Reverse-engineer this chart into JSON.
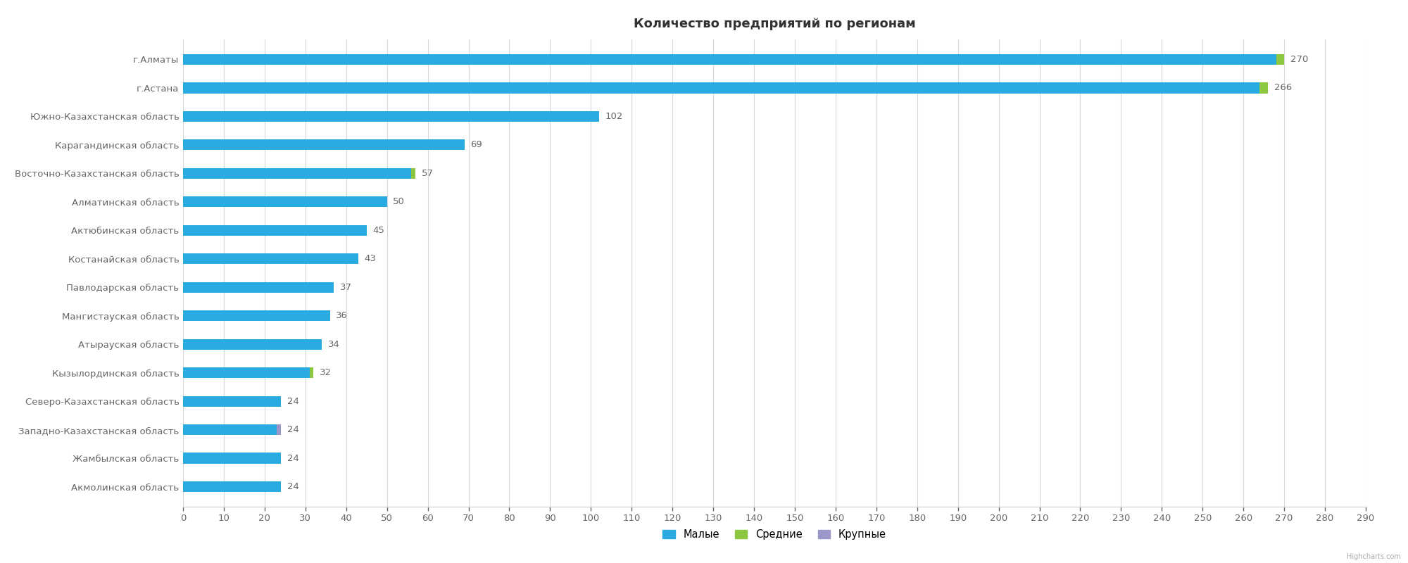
{
  "title": "Количество предприятий по регионам",
  "categories": [
    "г.Алматы",
    "г.Астана",
    "Южно-Казахстанская область",
    "Карагандинская область",
    "Восточно-Казахстанская область",
    "Алматинская область",
    "Актюбинская область",
    "Костанайская область",
    "Павлодарская область",
    "Мангистауская область",
    "Атырауская область",
    "Кызылординская область",
    "Северо-Казахстанская область",
    "Западно-Казахстанская область",
    "Жамбылская область",
    "Акмолинская область"
  ],
  "small": [
    268,
    264,
    102,
    69,
    56,
    50,
    45,
    43,
    37,
    36,
    34,
    31,
    24,
    23,
    24,
    24
  ],
  "medium": [
    2,
    2,
    0,
    0,
    1,
    0,
    0,
    0,
    0,
    0,
    0,
    1,
    0,
    0,
    0,
    0
  ],
  "large": [
    0,
    0,
    0,
    0,
    0,
    0,
    0,
    0,
    0,
    0,
    0,
    0,
    0,
    1,
    0,
    0
  ],
  "totals": [
    270,
    266,
    102,
    69,
    57,
    50,
    45,
    43,
    37,
    36,
    34,
    32,
    24,
    24,
    24,
    24
  ],
  "color_small": "#29ABE2",
  "color_medium": "#8DC63F",
  "color_large": "#9B97C8",
  "color_bg": "#FFFFFF",
  "color_grid": "#D8D8D8",
  "xlim": [
    0,
    290
  ],
  "xticks": [
    0,
    10,
    20,
    30,
    40,
    50,
    60,
    70,
    80,
    90,
    100,
    110,
    120,
    130,
    140,
    150,
    160,
    170,
    180,
    190,
    200,
    210,
    220,
    230,
    240,
    250,
    260,
    270,
    280,
    290
  ],
  "legend_labels": [
    "Малые",
    "Средние",
    "Крупные"
  ],
  "bar_height": 0.38,
  "title_fontsize": 13,
  "label_fontsize": 9.5,
  "tick_fontsize": 9.5,
  "value_fontsize": 9.5
}
